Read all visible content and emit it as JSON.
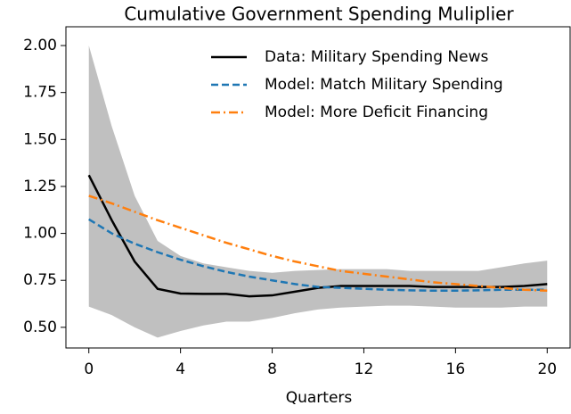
{
  "chart_data": {
    "type": "line",
    "title": "Cumulative Government Spending Muliplier",
    "x_label": "Quarters",
    "x": [
      0,
      1,
      2,
      3,
      4,
      5,
      6,
      7,
      8,
      9,
      10,
      11,
      12,
      13,
      14,
      15,
      16,
      17,
      18,
      19,
      20
    ],
    "band": {
      "color": "#c0c0c0",
      "upper": [
        2.0,
        1.57,
        1.2,
        0.96,
        0.88,
        0.84,
        0.82,
        0.8,
        0.79,
        0.8,
        0.805,
        0.81,
        0.81,
        0.81,
        0.8,
        0.8,
        0.8,
        0.8,
        0.82,
        0.84,
        0.855
      ],
      "lower": [
        0.61,
        0.565,
        0.5,
        0.445,
        0.48,
        0.51,
        0.53,
        0.53,
        0.55,
        0.575,
        0.595,
        0.605,
        0.61,
        0.615,
        0.615,
        0.61,
        0.605,
        0.605,
        0.605,
        0.61,
        0.61
      ]
    },
    "series": [
      {
        "name": "Data: Military Spending News",
        "color": "#000000",
        "dash": "solid",
        "values": [
          1.31,
          1.07,
          0.85,
          0.705,
          0.68,
          0.678,
          0.678,
          0.665,
          0.67,
          0.69,
          0.71,
          0.72,
          0.72,
          0.72,
          0.72,
          0.715,
          0.715,
          0.715,
          0.715,
          0.72,
          0.73
        ]
      },
      {
        "name": "Model: Match Military Spending",
        "color": "#1f77b4",
        "dash": "dashed",
        "values": [
          1.075,
          1.0,
          0.945,
          0.9,
          0.86,
          0.825,
          0.795,
          0.77,
          0.75,
          0.73,
          0.715,
          0.71,
          0.705,
          0.7,
          0.697,
          0.695,
          0.695,
          0.697,
          0.7,
          0.7,
          0.7
        ]
      },
      {
        "name": "Model: More Deficit Financing",
        "color": "#ff7f0e",
        "dash": "dashdot",
        "values": [
          1.2,
          1.16,
          1.115,
          1.07,
          1.03,
          0.99,
          0.95,
          0.915,
          0.88,
          0.85,
          0.825,
          0.8,
          0.785,
          0.77,
          0.755,
          0.74,
          0.73,
          0.72,
          0.71,
          0.7,
          0.695
        ]
      }
    ],
    "xlim": [
      -1,
      21
    ],
    "xticks": [
      0,
      4,
      8,
      12,
      16,
      20
    ],
    "ylim": [
      0.39,
      2.1
    ],
    "yticks": [
      {
        "value": 0.5,
        "label": "0.50"
      },
      {
        "value": 0.75,
        "label": "0.75"
      },
      {
        "value": 1.0,
        "label": "1.00"
      },
      {
        "value": 1.25,
        "label": "1.25"
      },
      {
        "value": 1.5,
        "label": "1.50"
      },
      {
        "value": 1.75,
        "label": "1.75"
      },
      {
        "value": 2.0,
        "label": "2.00"
      }
    ],
    "legend": "upper right",
    "grid": false
  }
}
